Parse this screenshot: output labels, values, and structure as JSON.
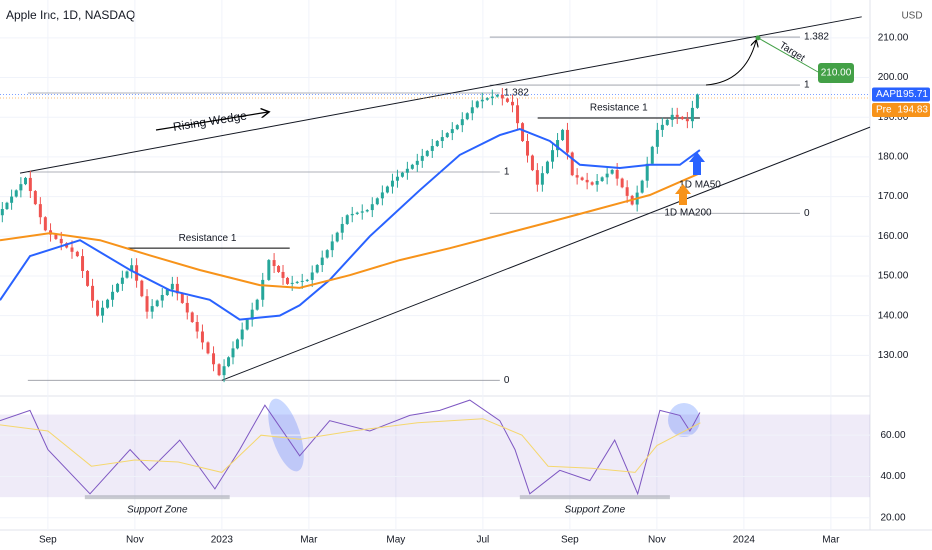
{
  "chart_data": [
    {
      "type": "line",
      "title": "Apple Inc, 1D, NASDAQ",
      "axis_label": "USD",
      "xlim": [
        -1.1,
        18.9
      ],
      "ylim": [
        120,
        215
      ],
      "yticks": [
        {
          "value": 130,
          "label": "130.00"
        },
        {
          "value": 140,
          "label": "140.00"
        },
        {
          "value": 150,
          "label": "150.00"
        },
        {
          "value": 160,
          "label": "160.00"
        },
        {
          "value": 170,
          "label": "170.00"
        },
        {
          "value": 180,
          "label": "180.00"
        },
        {
          "value": 190,
          "label": "190.00"
        },
        {
          "value": 200,
          "label": "200.00"
        },
        {
          "value": 210,
          "label": "210.00"
        }
      ],
      "grid": true,
      "series": [
        {
          "style": "candles",
          "up_color": "#26a69a",
          "down_color": "#ef5350",
          "x": [
            -1.1,
            -0.46,
            0,
            0.74,
            1.2,
            1.66,
            1.98,
            2.34,
            2.92,
            3.49,
            4.0,
            4.41,
            4.87,
            5.15,
            5.56,
            6.02,
            6.48,
            6.94,
            7.4,
            7.98,
            8.55,
            9.01,
            9.47,
            9.93,
            10.39,
            10.74,
            10.97,
            11.31,
            11.66,
            11.89,
            12.11,
            12.57,
            13.03,
            13.49,
            13.72,
            14.07,
            14.41,
            14.76,
            14.99
          ],
          "values": [
            165.3,
            174.7,
            161.5,
            155,
            140,
            148,
            152.7,
            141,
            148,
            136,
            125,
            134,
            144,
            154,
            148,
            149,
            156.5,
            165.3,
            166.6,
            174,
            179,
            184,
            188,
            194,
            195.6,
            193,
            184,
            173,
            181.7,
            186.8,
            175.4,
            173,
            176.7,
            168,
            174,
            186.8,
            190.6,
            189,
            195.7
          ]
        },
        {
          "name": "1D MA50",
          "color": "#2962ff",
          "x": [
            -1.1,
            -0.41,
            0.74,
            1.89,
            2.8,
            3.72,
            4.41,
            5.33,
            5.79,
            6.48,
            7.4,
            8.55,
            9.47,
            10.39,
            10.85,
            11.54,
            12.23,
            13.15,
            13.84,
            14.53,
            14.99
          ],
          "values": [
            143.9,
            155,
            159,
            151.5,
            146.4,
            144,
            139,
            140,
            142.6,
            149,
            160,
            171.6,
            180.5,
            185.5,
            187,
            184,
            178,
            177.2,
            178,
            178,
            181.7
          ]
        },
        {
          "name": "1D MA200",
          "color": "#f7931a",
          "x": [
            -1.1,
            0.05,
            1.2,
            2.34,
            3.49,
            4.87,
            5.79,
            6.94,
            8.09,
            9.24,
            10.39,
            11.54,
            12.69,
            13.84,
            14.99
          ],
          "values": [
            159,
            160.8,
            159,
            155.2,
            151.5,
            147.7,
            147,
            150.2,
            154,
            157,
            160.3,
            163.6,
            167,
            170.4,
            175.9
          ]
        }
      ],
      "price_labels": [
        {
          "name": "AAPL",
          "value": 195.71,
          "color": "#2962ff"
        },
        {
          "name": "Pre",
          "value": 194.83,
          "color": "#f7931a"
        }
      ],
      "wedge": {
        "label": "Rising Wedge",
        "upper": {
          "x": [
            -0.64,
            18.71
          ],
          "values": [
            175.9,
            215.3
          ]
        },
        "lower": {
          "x": [
            4.0,
            18.9
          ],
          "values": [
            123.7,
            187.5
          ]
        }
      },
      "fib_left": [
        {
          "ratio": 0,
          "value": 123.7
        },
        {
          "ratio": 1,
          "value": 176.2
        },
        {
          "ratio": 1.382,
          "value": 196.1
        }
      ],
      "fib_right": [
        {
          "ratio": 0,
          "value": 165.8
        },
        {
          "ratio": 1,
          "value": 198.1
        },
        {
          "ratio": 1.382,
          "value": 210.2
        }
      ],
      "resistance": [
        {
          "label": "Resistance 1",
          "value": 157
        },
        {
          "label": "Resistance 1",
          "value": 189.8
        }
      ],
      "target": {
        "label": "Target",
        "value": 210,
        "value_label": "210.00",
        "color": "#43a047"
      }
    },
    {
      "type": "line",
      "xlim": [
        -1.1,
        18.9
      ],
      "ylim": [
        17,
        78
      ],
      "yticks": [
        {
          "value": 20,
          "label": "20.00"
        },
        {
          "value": 40,
          "label": "40.00"
        },
        {
          "value": 60,
          "label": "60.00"
        }
      ],
      "xticks": [
        {
          "value": 0,
          "label": "Sep"
        },
        {
          "value": 2,
          "label": "Nov"
        },
        {
          "value": 4,
          "label": "2023"
        },
        {
          "value": 6,
          "label": "Mar"
        },
        {
          "value": 8,
          "label": "May"
        },
        {
          "value": 10,
          "label": "Jul"
        },
        {
          "value": 12,
          "label": "Sep"
        },
        {
          "value": 14,
          "label": "Nov"
        },
        {
          "value": 16,
          "label": "2024"
        },
        {
          "value": 18,
          "label": "Mar"
        }
      ],
      "band": [
        30,
        70
      ],
      "series": [
        {
          "color": "#7e57c2",
          "x": [
            -1.1,
            -0.41,
            0,
            0.97,
            1.89,
            2.34,
            3.03,
            3.84,
            4.41,
            4.99,
            5.79,
            6.48,
            7.4,
            8.32,
            9.01,
            9.7,
            10.39,
            10.74,
            11.08,
            11.77,
            12.46,
            13.03,
            13.56,
            14.07,
            14.53,
            14.76,
            14.99
          ],
          "values": [
            67,
            72,
            53,
            31.6,
            53,
            43,
            57.6,
            34,
            53,
            74.5,
            50,
            67,
            62,
            69.6,
            72,
            77,
            67,
            53,
            31.6,
            43,
            38,
            57.6,
            31.6,
            72,
            69.6,
            62,
            71
          ]
        },
        {
          "color": "#f5d76e",
          "x": [
            -1.1,
            0,
            1,
            2,
            3,
            4,
            4.9,
            5.8,
            7,
            8.5,
            10,
            10.9,
            11.5,
            12.5,
            13.5,
            14,
            15
          ],
          "values": [
            65,
            62,
            45,
            48,
            47,
            42,
            60,
            58,
            62,
            66,
            68,
            60,
            45,
            44,
            42,
            55,
            66
          ]
        }
      ],
      "support_zones": [
        "Support Zone",
        "Support Zone"
      ]
    }
  ]
}
